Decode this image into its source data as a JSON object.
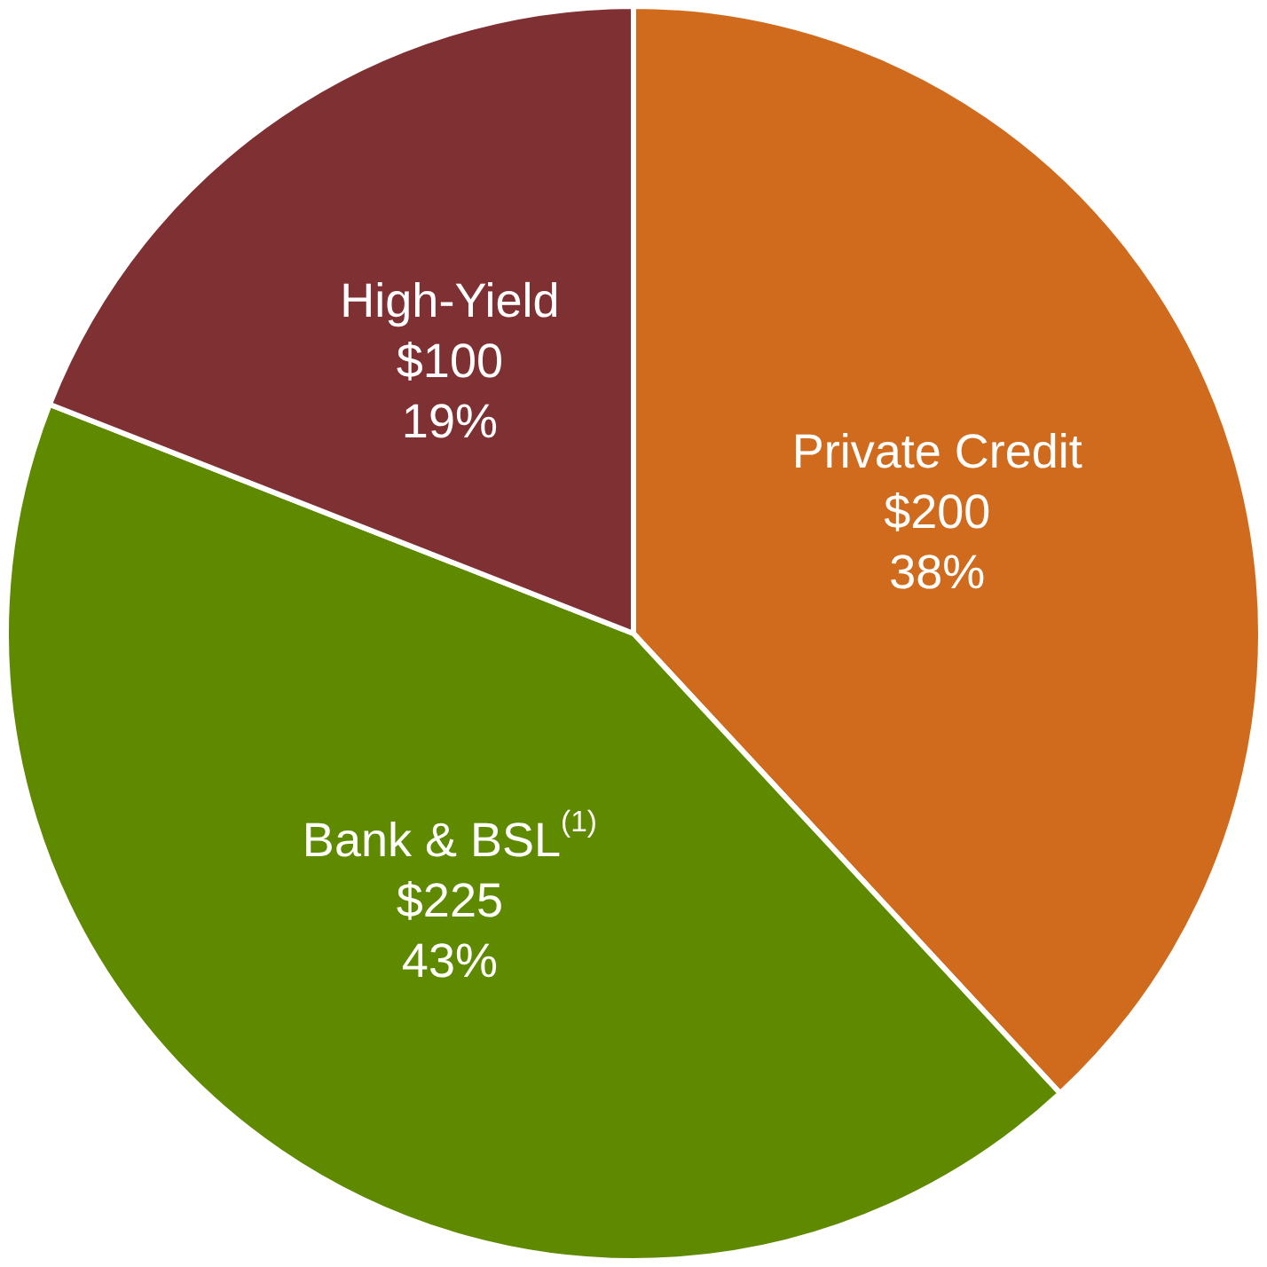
{
  "chart_data": {
    "type": "pie",
    "categories": [
      "Private Credit",
      "Bank & BSL$^{(1)}$",
      "High-Yield"
    ],
    "values": [
      200,
      225,
      100
    ],
    "value_labels": [
      "$200\n38%",
      "$225\n43%",
      "$100\n19%"
    ],
    "colors": [
      "#d06b1e",
      "#5f8a00",
      "#7e3032"
    ],
    "legend": false
  }
}
